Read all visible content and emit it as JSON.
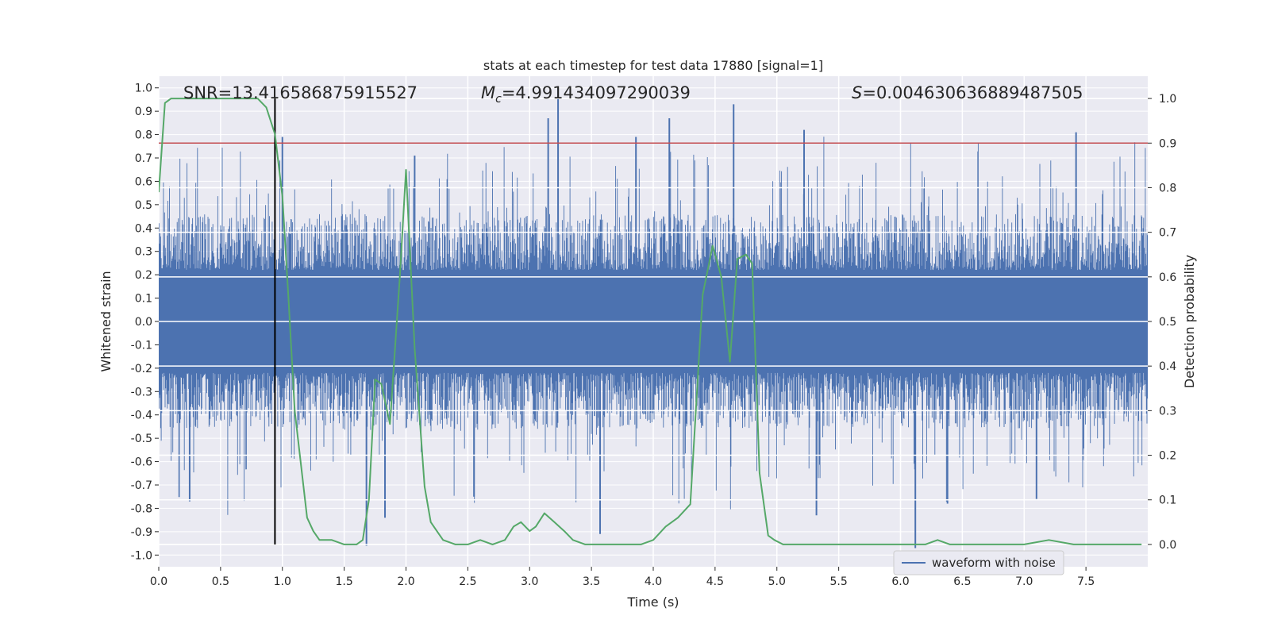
{
  "chart_data": {
    "type": "line",
    "title": "stats at each timestep for test data 17880 [signal=1]",
    "xlabel": "Time (s)",
    "ylabel_left": "Whitened strain",
    "ylabel_right": "Detection probability",
    "xlim": [
      0.0,
      8.0
    ],
    "ylim_left": [
      -1.05,
      1.05
    ],
    "ylim_right": [
      -0.05,
      1.05
    ],
    "xticks": [
      "0.0",
      "0.5",
      "1.0",
      "1.5",
      "2.0",
      "2.5",
      "3.0",
      "3.5",
      "4.0",
      "4.5",
      "5.0",
      "5.5",
      "6.0",
      "6.5",
      "7.0",
      "7.5"
    ],
    "yticks_left": [
      "1.0",
      "0.9",
      "0.8",
      "0.7",
      "0.6",
      "0.5",
      "0.4",
      "0.3",
      "0.2",
      "0.1",
      "0.0",
      "-0.1",
      "-0.2",
      "-0.3",
      "-0.4",
      "-0.5",
      "-0.6",
      "-0.7",
      "-0.8",
      "-0.9",
      "-1.0"
    ],
    "yticks_right": [
      "1.0",
      "0.9",
      "0.8",
      "0.7",
      "0.6",
      "0.5",
      "0.4",
      "0.3",
      "0.2",
      "0.1",
      "0.0"
    ],
    "annotations": {
      "snr": "SNR=13.416586875915527",
      "mc_prefix": "M",
      "mc_sub": "c",
      "mc_value": "=4.991434097290039",
      "s_prefix": "S",
      "s_value": "=0.004630636889487505"
    },
    "legend": {
      "label": "waveform with noise",
      "loc": "lower-right"
    },
    "threshold_line": {
      "value": 0.9,
      "axis": "right",
      "color": "#c44e52"
    },
    "marker_line": {
      "x": 0.94,
      "color": "#000000"
    },
    "series": [
      {
        "name": "waveform with noise",
        "axis": "left",
        "color": "#4c72b0",
        "description": "dense whitened-strain noise, roughly within ±0.4 with spikes up to 1.0",
        "typical_max": 0.4,
        "typical_min": -0.4,
        "notable_spikes": [
          {
            "x": 3.23,
            "y": 1.0
          },
          {
            "x": 4.65,
            "y": 0.93
          },
          {
            "x": 4.13,
            "y": 0.87
          },
          {
            "x": 3.15,
            "y": 0.87
          },
          {
            "x": 5.22,
            "y": 0.82
          },
          {
            "x": 7.42,
            "y": 0.81
          },
          {
            "x": 1.0,
            "y": 0.79
          },
          {
            "x": 3.86,
            "y": 0.79
          },
          {
            "x": 2.07,
            "y": 0.71
          },
          {
            "x": 6.12,
            "y": -0.97
          },
          {
            "x": 1.68,
            "y": -0.96
          },
          {
            "x": 3.57,
            "y": -0.91
          },
          {
            "x": 1.83,
            "y": -0.84
          },
          {
            "x": 5.32,
            "y": -0.83
          },
          {
            "x": 6.38,
            "y": -0.78
          },
          {
            "x": 0.25,
            "y": -0.77
          },
          {
            "x": 7.1,
            "y": -0.76
          },
          {
            "x": 2.55,
            "y": -0.75
          }
        ]
      },
      {
        "name": "detection probability",
        "axis": "right",
        "color": "#55a868",
        "x": [
          0.0,
          0.05,
          0.1,
          0.2,
          0.3,
          0.4,
          0.5,
          0.6,
          0.7,
          0.8,
          0.87,
          0.94,
          1.0,
          1.05,
          1.1,
          1.15,
          1.2,
          1.25,
          1.3,
          1.4,
          1.5,
          1.55,
          1.6,
          1.65,
          1.7,
          1.75,
          1.8,
          1.87,
          1.95,
          2.0,
          2.07,
          2.15,
          2.2,
          2.25,
          2.3,
          2.4,
          2.5,
          2.6,
          2.7,
          2.8,
          2.87,
          2.93,
          3.0,
          3.05,
          3.12,
          3.2,
          3.28,
          3.35,
          3.45,
          3.5,
          3.6,
          3.7,
          3.8,
          3.9,
          4.0,
          4.1,
          4.2,
          4.3,
          4.4,
          4.48,
          4.55,
          4.62,
          4.68,
          4.75,
          4.8,
          4.86,
          4.93,
          4.98,
          5.05,
          5.1,
          5.2,
          5.5,
          6.0,
          6.2,
          6.3,
          6.4,
          6.5,
          6.7,
          7.0,
          7.2,
          7.4,
          7.6,
          7.8,
          7.95
        ],
        "y": [
          0.79,
          0.99,
          1.0,
          1.0,
          1.0,
          1.0,
          1.0,
          1.0,
          1.0,
          1.0,
          0.98,
          0.92,
          0.78,
          0.55,
          0.3,
          0.18,
          0.06,
          0.03,
          0.01,
          0.01,
          0.0,
          0.0,
          0.0,
          0.01,
          0.1,
          0.37,
          0.36,
          0.27,
          0.6,
          0.84,
          0.44,
          0.13,
          0.05,
          0.03,
          0.01,
          0.0,
          0.0,
          0.01,
          0.0,
          0.01,
          0.04,
          0.05,
          0.03,
          0.04,
          0.07,
          0.05,
          0.03,
          0.01,
          0.0,
          0.0,
          0.0,
          0.0,
          0.0,
          0.0,
          0.01,
          0.04,
          0.06,
          0.09,
          0.56,
          0.67,
          0.6,
          0.41,
          0.64,
          0.65,
          0.63,
          0.16,
          0.02,
          0.01,
          0.0,
          0.0,
          0.0,
          0.0,
          0.0,
          0.0,
          0.01,
          0.0,
          0.0,
          0.0,
          0.0,
          0.01,
          0.0,
          0.0,
          0.0,
          0.0
        ]
      }
    ]
  }
}
